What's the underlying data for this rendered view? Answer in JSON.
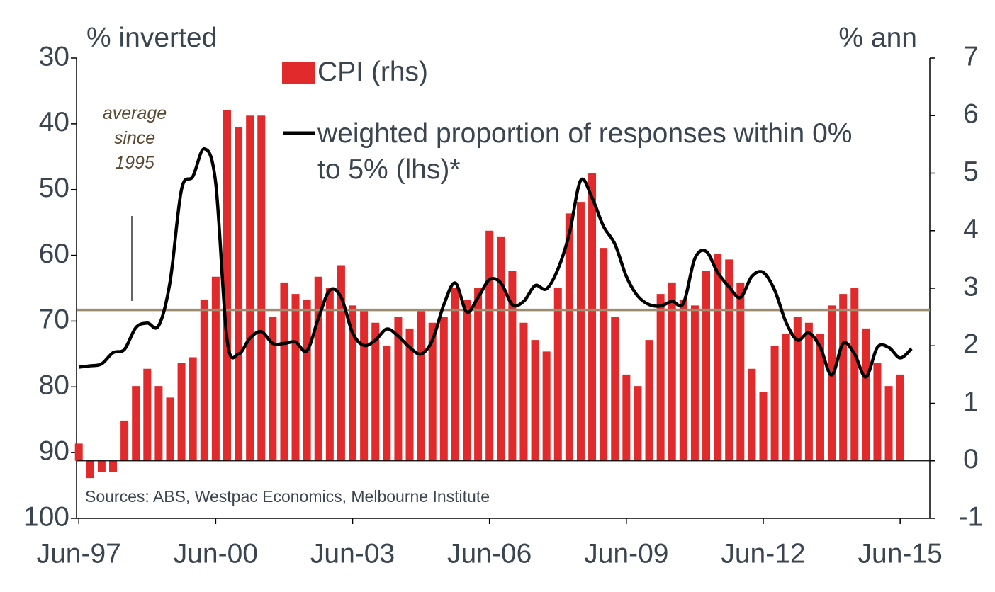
{
  "chart_data": {
    "type": "bar_line",
    "y_label": "% inverted",
    "y2_label": "% ann",
    "source": "Sources: ABS, Westpac Economics, Melbourne Institute",
    "xlim": [
      1997.45,
      2016.15
    ],
    "xticks": [
      {
        "value": 1997.5,
        "label": "Jun-97"
      },
      {
        "value": 2000.5,
        "label": "Jun-00"
      },
      {
        "value": 2003.5,
        "label": "Jun-03"
      },
      {
        "value": 2006.5,
        "label": "Jun-06"
      },
      {
        "value": 2009.5,
        "label": "Jun-09"
      },
      {
        "value": 2012.5,
        "label": "Jun-12"
      },
      {
        "value": 2015.5,
        "label": "Jun-15"
      }
    ],
    "ylim": [
      30,
      100
    ],
    "y_inverted": true,
    "yticks": [
      30,
      40,
      50,
      60,
      70,
      80,
      90,
      100
    ],
    "y2lim": [
      -1,
      7
    ],
    "y2ticks": [
      -1,
      0,
      1,
      2,
      3,
      4,
      5,
      6,
      7
    ],
    "average_line": {
      "value": 68.3,
      "color": "#9c8b6e"
    },
    "average_label": "average since 1995",
    "series": [
      {
        "name": "CPI (rhs)",
        "type": "bar",
        "axis": "y2",
        "color": "#e02a2b",
        "x": [
          1997.5,
          1997.75,
          1998,
          1998.25,
          1998.5,
          1998.75,
          1999,
          1999.25,
          1999.5,
          1999.75,
          2000,
          2000.25,
          2000.5,
          2000.75,
          2001,
          2001.25,
          2001.5,
          2001.75,
          2002,
          2002.25,
          2002.5,
          2002.75,
          2003,
          2003.25,
          2003.5,
          2003.75,
          2004,
          2004.25,
          2004.5,
          2004.75,
          2005,
          2005.25,
          2005.5,
          2005.75,
          2006,
          2006.25,
          2006.5,
          2006.75,
          2007,
          2007.25,
          2007.5,
          2007.75,
          2008,
          2008.25,
          2008.5,
          2008.75,
          2009,
          2009.25,
          2009.5,
          2009.75,
          2010,
          2010.25,
          2010.5,
          2010.75,
          2011,
          2011.25,
          2011.5,
          2011.75,
          2012,
          2012.25,
          2012.5,
          2012.75,
          2013,
          2013.25,
          2013.5,
          2013.75,
          2014,
          2014.25,
          2014.5,
          2014.75,
          2015,
          2015.25,
          2015.5
        ],
        "values": [
          0.3,
          -0.3,
          -0.2,
          -0.2,
          0.7,
          1.3,
          1.6,
          1.3,
          1.1,
          1.7,
          1.8,
          2.8,
          3.2,
          6.1,
          5.8,
          6.0,
          6.0,
          2.5,
          3.1,
          2.9,
          2.8,
          3.2,
          3.0,
          3.4,
          2.7,
          2.6,
          2.4,
          2.0,
          2.5,
          2.3,
          2.6,
          2.4,
          2.5,
          3.0,
          2.8,
          3.0,
          4.0,
          3.9,
          3.3,
          2.4,
          2.1,
          1.9,
          3.0,
          4.3,
          4.5,
          5.0,
          3.7,
          2.5,
          1.5,
          1.3,
          2.1,
          2.9,
          3.1,
          2.8,
          2.7,
          3.3,
          3.6,
          3.5,
          3.1,
          1.6,
          1.2,
          2.0,
          2.2,
          2.5,
          2.4,
          2.2,
          2.7,
          2.9,
          3.0,
          2.3,
          1.7,
          1.3,
          1.5
        ]
      },
      {
        "name": "weighted proportion of responses within 0% to 5% (lhs)*",
        "type": "line",
        "axis": "y",
        "color": "#000000",
        "x": [
          1997.5,
          1997.75,
          1998,
          1998.25,
          1998.5,
          1998.75,
          1999,
          1999.25,
          1999.5,
          1999.75,
          2000,
          2000.25,
          2000.5,
          2000.75,
          2001,
          2001.25,
          2001.5,
          2001.75,
          2002,
          2002.25,
          2002.5,
          2002.75,
          2003,
          2003.25,
          2003.5,
          2003.75,
          2004,
          2004.25,
          2004.5,
          2004.75,
          2005,
          2005.25,
          2005.5,
          2005.75,
          2006,
          2006.25,
          2006.5,
          2006.75,
          2007,
          2007.25,
          2007.5,
          2007.75,
          2008,
          2008.25,
          2008.5,
          2008.75,
          2009,
          2009.25,
          2009.5,
          2009.75,
          2010,
          2010.25,
          2010.5,
          2010.75,
          2011,
          2011.25,
          2011.5,
          2011.75,
          2012,
          2012.25,
          2012.5,
          2012.75,
          2013,
          2013.25,
          2013.5,
          2013.75,
          2014,
          2014.25,
          2014.5,
          2014.75,
          2015,
          2015.25,
          2015.5,
          2015.75
        ],
        "values": [
          77.0,
          76.8,
          76.5,
          74.8,
          74.3,
          71,
          70.3,
          70.7,
          64,
          50,
          48,
          43.8,
          49,
          72.9,
          75,
          72.6,
          71.6,
          73.4,
          73.4,
          73.2,
          74.5,
          69.6,
          65.3,
          66.4,
          71.8,
          73.7,
          72.9,
          71.2,
          72.3,
          74,
          75,
          72.9,
          67.5,
          64.2,
          68.6,
          66.4,
          63.7,
          64.2,
          67.5,
          67,
          64.6,
          65.1,
          62.1,
          56.7,
          48.6,
          51.3,
          55.6,
          58.3,
          63.2,
          66.2,
          67.5,
          67.7,
          67,
          67.3,
          60.5,
          59.4,
          62.6,
          64.8,
          66.4,
          63.2,
          62.6,
          65.3,
          70.2,
          72.9,
          71.8,
          74,
          78.2,
          73.4,
          75,
          78.5,
          74,
          74,
          75.6,
          74.2
        ]
      }
    ]
  }
}
